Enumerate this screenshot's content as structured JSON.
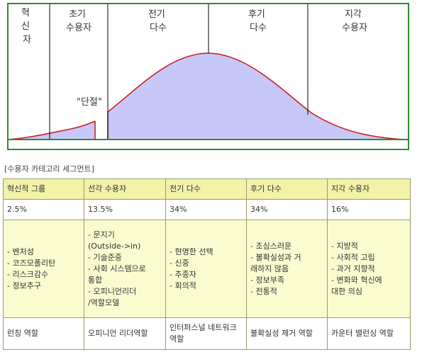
{
  "diagram": {
    "segments": [
      {
        "label_lines": [
          "혁",
          "신",
          "자"
        ]
      },
      {
        "label_lines": [
          "초기",
          "수용자"
        ]
      },
      {
        "label_lines": [
          "전기",
          "다수"
        ]
      },
      {
        "label_lines": [
          "후기",
          "다수"
        ]
      },
      {
        "label_lines": [
          "지각",
          "수용자"
        ]
      }
    ],
    "chasm_label": "\"단절\"",
    "colors": {
      "border": "#2e8b2e",
      "fill": "#c8c8f8",
      "curve": "#c62020"
    }
  },
  "caption": "[수용자 카테고리 세그먼트]",
  "table": {
    "columns": [
      {
        "name": "혁신적 그룹",
        "share": "2.5%",
        "traits": [
          "- 벤처성",
          "- 코즈모폴리탄",
          "- 리스크감수",
          "- 정보추구"
        ],
        "role": "런칭 역할"
      },
      {
        "name": "선각 수용자",
        "share": "13.5%",
        "traits": [
          "- 문지기",
          "(Outside->in)",
          "- 기술준중",
          "- 사회 시스템으로",
          "통합",
          "- 오피니언리더",
          "/역할모델"
        ],
        "role": "오피니언 리더역할"
      },
      {
        "name": "전기 다수",
        "share": "34%",
        "traits": [
          "- 현명한 선택",
          "- 신중",
          "- 추종자",
          "- 회의적"
        ],
        "role": "인터퍼스널 네트워크 역할"
      },
      {
        "name": "후기 다수",
        "share": "34%",
        "traits": [
          "- 조심스러운",
          "- 불확실성과 거",
          "래하지 않음",
          "- 정보부족",
          "- 전통적"
        ],
        "role": "불확실성 제거 역할"
      },
      {
        "name": "지각 수용자",
        "share": "16%",
        "traits": [
          "- 지방적",
          "- 사회적 고립",
          "- 과거 지향적",
          "- 변화와 혁신에",
          "대한 의심"
        ],
        "role": "카운터 밸런싱 역할"
      }
    ]
  }
}
